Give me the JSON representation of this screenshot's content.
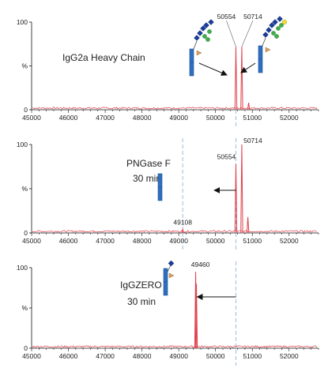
{
  "chart_data": [
    {
      "type": "line",
      "title": "IgG2a Heavy Chain",
      "subtitle": "",
      "xlabel": "",
      "ylabel": "%",
      "xlim": [
        45000,
        52800
      ],
      "ylim": [
        0,
        100
      ],
      "y_ticks": [
        "0",
        "%",
        "100"
      ],
      "x_ticks": [
        45000,
        46000,
        47000,
        48000,
        49000,
        50000,
        51000,
        52000
      ],
      "grid": false,
      "color": "#e0404a",
      "peaks": [
        {
          "x": 50554,
          "y": 72,
          "label": "50554"
        },
        {
          "x": 50714,
          "y": 72,
          "label": "50714"
        },
        {
          "x": 50900,
          "y": 8,
          "label": ""
        }
      ],
      "glycans": [
        {
          "at_x": 49600,
          "label": "",
          "icon": "glycan-g0f-icon"
        },
        {
          "at_x": 51700,
          "label": "",
          "icon": "glycan-g1f-icon"
        }
      ]
    },
    {
      "type": "line",
      "title": "PNGase F",
      "subtitle": "30 min",
      "xlabel": "",
      "ylabel": "%",
      "xlim": [
        45000,
        52800
      ],
      "ylim": [
        0,
        100
      ],
      "y_ticks": [
        "0",
        "%",
        "100"
      ],
      "x_ticks": [
        45000,
        46000,
        47000,
        48000,
        49000,
        50000,
        51000,
        52000
      ],
      "grid": false,
      "color": "#e0404a",
      "peaks": [
        {
          "x": 49108,
          "y": 4,
          "label": "49108"
        },
        {
          "x": 50554,
          "y": 78,
          "label": "50554"
        },
        {
          "x": 50714,
          "y": 100,
          "label": "50714"
        },
        {
          "x": 50880,
          "y": 18,
          "label": ""
        }
      ],
      "arrow": {
        "from_x": 50554,
        "to_x": 49108
      },
      "reference_lines": [
        49108,
        50554
      ]
    },
    {
      "type": "line",
      "title": "IgGZERO",
      "subtitle": "30 min",
      "xlabel": "",
      "ylabel": "%",
      "xlim": [
        45000,
        52800
      ],
      "ylim": [
        0,
        100
      ],
      "y_ticks": [
        "0",
        "%",
        "100"
      ],
      "x_ticks": [
        45000,
        46000,
        47000,
        48000,
        49000,
        50000,
        51000,
        52000
      ],
      "grid": false,
      "color": "#e0404a",
      "peaks": [
        {
          "x": 49460,
          "y": 95,
          "label": "49460"
        },
        {
          "x": 49480,
          "y": 80,
          "label": ""
        }
      ],
      "arrow": {
        "from_x": 50554,
        "to_x": 49500
      },
      "reference_lines": [
        50554
      ]
    }
  ]
}
